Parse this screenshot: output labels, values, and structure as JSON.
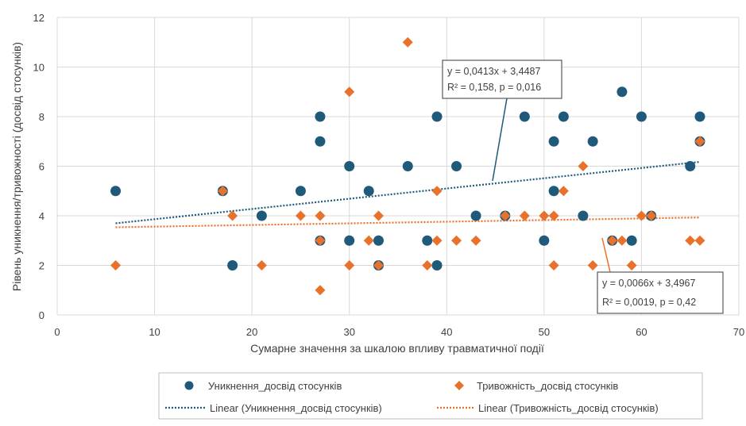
{
  "chart_data": {
    "type": "scatter",
    "title": "",
    "xlabel": "Сумарне значення за шкалою впливу травматичної події",
    "ylabel": "Рівень уникнення/тривожності (досвід стосунків)",
    "xlim": [
      0,
      70
    ],
    "ylim": [
      0,
      12
    ],
    "x_ticks": [
      0,
      10,
      20,
      30,
      40,
      50,
      60,
      70
    ],
    "y_ticks": [
      0,
      2,
      4,
      6,
      8,
      10,
      12
    ],
    "grid": true,
    "legend_position": "bottom",
    "series": [
      {
        "name": "Уникнення_досвід стосунків",
        "color": "#1f5a7a",
        "marker": "circle",
        "points": [
          [
            6,
            5
          ],
          [
            17,
            5
          ],
          [
            18,
            2
          ],
          [
            21,
            4
          ],
          [
            25,
            5
          ],
          [
            27,
            8
          ],
          [
            27,
            7
          ],
          [
            27,
            3
          ],
          [
            30,
            6
          ],
          [
            30,
            3
          ],
          [
            32,
            5
          ],
          [
            33,
            3
          ],
          [
            33,
            2
          ],
          [
            36,
            6
          ],
          [
            38,
            3
          ],
          [
            39,
            8
          ],
          [
            39,
            2
          ],
          [
            41,
            6
          ],
          [
            43,
            4
          ],
          [
            46,
            4
          ],
          [
            48,
            8
          ],
          [
            50,
            3
          ],
          [
            51,
            7
          ],
          [
            51,
            5
          ],
          [
            52,
            8
          ],
          [
            54,
            4
          ],
          [
            55,
            7
          ],
          [
            57,
            3
          ],
          [
            58,
            9
          ],
          [
            59,
            3
          ],
          [
            60,
            8
          ],
          [
            61,
            4
          ],
          [
            65,
            6
          ],
          [
            66,
            8
          ],
          [
            66,
            7
          ]
        ]
      },
      {
        "name": "Тривожність_досвід стосунків",
        "color": "#e8712b",
        "marker": "diamond",
        "points": [
          [
            6,
            2
          ],
          [
            17,
            5
          ],
          [
            18,
            4
          ],
          [
            21,
            2
          ],
          [
            25,
            4
          ],
          [
            27,
            4
          ],
          [
            27,
            3
          ],
          [
            27,
            1
          ],
          [
            30,
            9
          ],
          [
            30,
            2
          ],
          [
            32,
            3
          ],
          [
            33,
            4
          ],
          [
            33,
            2
          ],
          [
            36,
            11
          ],
          [
            38,
            2
          ],
          [
            39,
            5
          ],
          [
            39,
            3
          ],
          [
            41,
            3
          ],
          [
            43,
            3
          ],
          [
            46,
            4
          ],
          [
            48,
            4
          ],
          [
            50,
            4
          ],
          [
            51,
            4
          ],
          [
            51,
            2
          ],
          [
            52,
            5
          ],
          [
            54,
            6
          ],
          [
            55,
            2
          ],
          [
            57,
            3
          ],
          [
            58,
            3
          ],
          [
            59,
            2
          ],
          [
            60,
            4
          ],
          [
            61,
            4
          ],
          [
            65,
            3
          ],
          [
            66,
            3
          ],
          [
            66,
            7
          ]
        ]
      }
    ],
    "trendlines": [
      {
        "name": "Linear (Уникнення_досвід стосунків)",
        "color": "#1f5a7a",
        "slope": 0.0413,
        "intercept": 3.4487,
        "x_range": [
          6,
          66
        ],
        "equation": "y = 0,0413x + 3,4487",
        "stats": "R² = 0,158, p = 0,016"
      },
      {
        "name": "Linear (Тривожність_досвід стосунків)",
        "color": "#e8712b",
        "slope": 0.0066,
        "intercept": 3.4967,
        "x_range": [
          6,
          66
        ],
        "equation": "y = 0,0066x + 3,4967",
        "stats": "R² = 0,0019, p = 0,42"
      }
    ]
  }
}
